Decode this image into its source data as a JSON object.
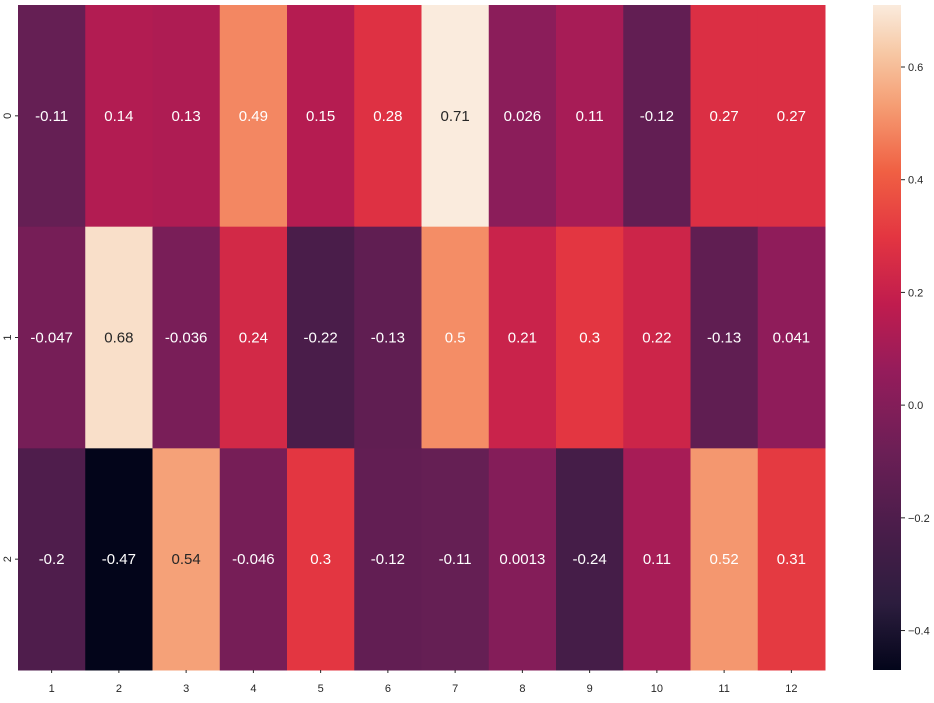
{
  "chart_data": {
    "type": "heatmap",
    "colormap": "rocket",
    "row_labels": [
      "0",
      "1",
      "2"
    ],
    "column_labels": [
      "1",
      "2",
      "3",
      "4",
      "5",
      "6",
      "7",
      "8",
      "9",
      "10",
      "11",
      "12"
    ],
    "values": [
      [
        -0.11,
        0.14,
        0.13,
        0.49,
        0.15,
        0.28,
        0.71,
        0.026,
        0.11,
        -0.12,
        0.27,
        0.27
      ],
      [
        -0.047,
        0.68,
        -0.036,
        0.24,
        -0.22,
        -0.13,
        0.5,
        0.21,
        0.3,
        0.22,
        -0.13,
        0.041
      ],
      [
        -0.2,
        -0.47,
        0.54,
        -0.046,
        0.3,
        -0.12,
        -0.11,
        0.0013,
        -0.24,
        0.11,
        0.52,
        0.31
      ]
    ],
    "annotations": [
      [
        "-0.11",
        "0.14",
        "0.13",
        "0.49",
        "0.15",
        "0.28",
        "0.71",
        "0.026",
        "0.11",
        "-0.12",
        "0.27",
        "0.27"
      ],
      [
        "-0.047",
        "0.68",
        "-0.036",
        "0.24",
        "-0.22",
        "-0.13",
        "0.5",
        "0.21",
        "0.3",
        "0.22",
        "-0.13",
        "0.041"
      ],
      [
        "-0.2",
        "-0.47",
        "0.54",
        "-0.046",
        "0.3",
        "-0.12",
        "-0.11",
        "0.0013",
        "-0.24",
        "0.11",
        "0.52",
        "0.31"
      ]
    ],
    "vmin": -0.47,
    "vmax": 0.71,
    "colorbar": {
      "ticks": [
        0.6,
        0.4,
        0.2,
        0.0,
        -0.2,
        -0.4
      ],
      "tick_labels": [
        "0.6",
        "0.4",
        "0.2",
        "0.0",
        "−0.2",
        "−0.4"
      ]
    },
    "title": "",
    "xlabel": "",
    "ylabel": "",
    "grid": false
  }
}
